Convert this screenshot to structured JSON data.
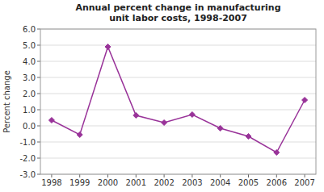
{
  "chart_data": {
    "type": "line",
    "title": "Annual percent change in manufacturing\nunit labor costs, 1998-2007",
    "ylabel": "Percent change",
    "x": [
      1998,
      1999,
      2000,
      2001,
      2002,
      2003,
      2004,
      2005,
      2006,
      2007
    ],
    "values": [
      0.35,
      -0.55,
      4.9,
      0.65,
      0.2,
      0.7,
      -0.15,
      -0.65,
      -1.65,
      1.6
    ],
    "xlim": [
      1997.6,
      2007.4
    ],
    "xticks": [
      1998,
      1999,
      2000,
      2001,
      2002,
      2003,
      2004,
      2005,
      2006,
      2007
    ],
    "ylim": [
      -3.0,
      6.0
    ],
    "yticks": [
      {
        "value": -3.0,
        "label": "-3.0"
      },
      {
        "value": -2.0,
        "label": "-2.0"
      },
      {
        "value": -1.0,
        "label": "-1.0"
      },
      {
        "value": 0.0,
        "label": "0.0"
      },
      {
        "value": 1.0,
        "label": "1.0"
      },
      {
        "value": 2.0,
        "label": "2.0"
      },
      {
        "value": 3.0,
        "label": "3.0"
      },
      {
        "value": 4.0,
        "label": "4.0"
      },
      {
        "value": 5.0,
        "label": "5.0"
      },
      {
        "value": 6.0,
        "label": "6.0"
      }
    ],
    "color": "#993399",
    "marker": "diamond",
    "grid": true
  }
}
